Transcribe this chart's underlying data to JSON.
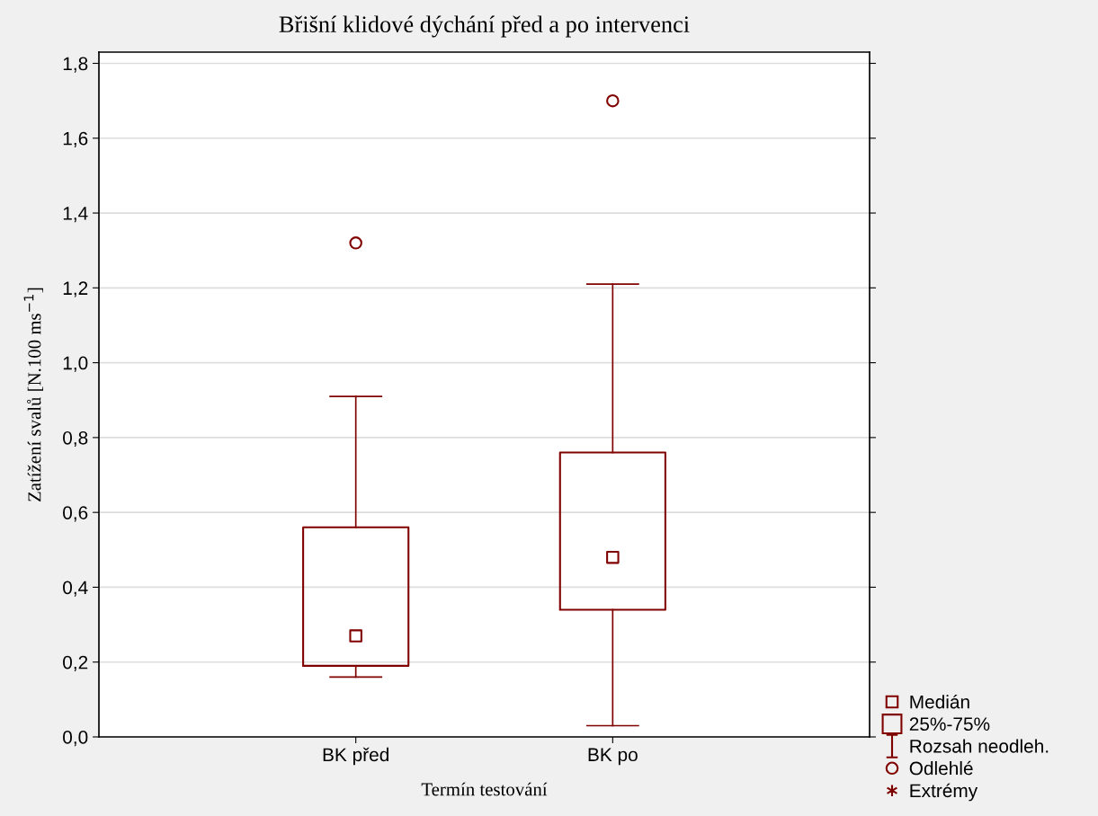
{
  "chart_data": {
    "type": "box",
    "title": "Břišní klidové dýchání před a po intervenci",
    "xlabel": "Termín testování",
    "ylabel": "Zatížení svalů [N.100 ms$^{−1}$]",
    "categories": [
      "BK před",
      "BK po"
    ],
    "series": [
      {
        "color": "#800000",
        "boxes": [
          {
            "low": 0.16,
            "q1": 0.19,
            "median": 0.27,
            "q3": 0.56,
            "high": 0.91,
            "outliers": [
              1.32
            ]
          },
          {
            "low": 0.03,
            "q1": 0.34,
            "median": 0.48,
            "q3": 0.76,
            "high": 1.21,
            "outliers": [
              1.7
            ]
          }
        ]
      }
    ],
    "annotations": [
      "Medián",
      "25%-75%",
      "Rozsah neodleh.",
      "Odlehlé",
      "Extrémy"
    ],
    "ylim": [
      0,
      1.83
    ],
    "yticks": [
      {
        "value": 0,
        "label": "0,0"
      },
      {
        "value": 0.2,
        "label": "0,2"
      },
      {
        "value": 0.4,
        "label": "0,4"
      },
      {
        "value": 0.6,
        "label": "0,6"
      },
      {
        "value": 0.8,
        "label": "0,8"
      },
      {
        "value": 1.0,
        "label": "1,0"
      },
      {
        "value": 1.2,
        "label": "1,2"
      },
      {
        "value": 1.4,
        "label": "1,4"
      },
      {
        "value": 1.6,
        "label": "1,6"
      },
      {
        "value": 1.8,
        "label": "1,8"
      }
    ],
    "grid": "y"
  }
}
